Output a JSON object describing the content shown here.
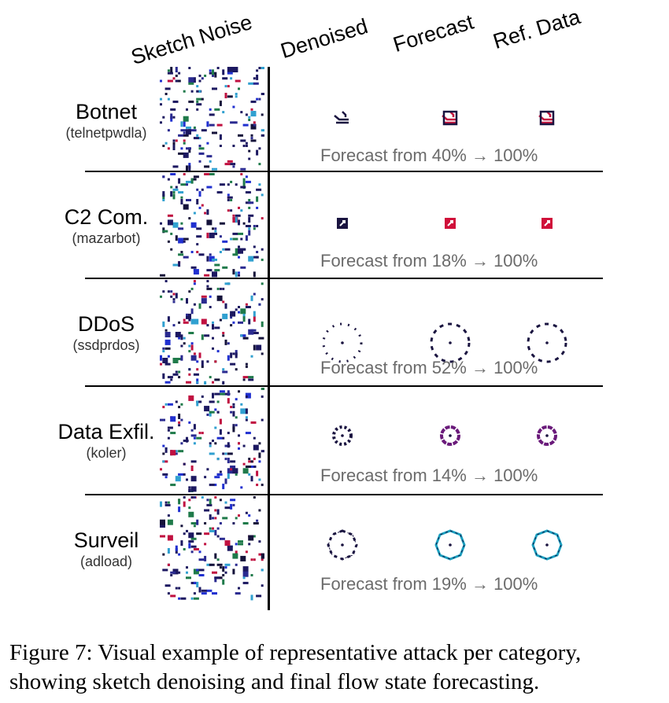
{
  "figure": {
    "column_headers": [
      "Sketch Noise",
      "Denoised",
      "Forecast",
      "Ref. Data"
    ],
    "rows": [
      {
        "category": "Botnet",
        "sample": "(telnetpwdla)",
        "forecast_text": "Forecast from 40% → 100%",
        "forecast_from_pct": 40,
        "forecast_to_pct": 100,
        "shape": "glyph-botnet",
        "color": "#c4163f"
      },
      {
        "category": "C2 Com.",
        "sample": "(mazarbot)",
        "forecast_text": "Forecast from 18% → 100%",
        "forecast_from_pct": 18,
        "forecast_to_pct": 100,
        "shape": "square",
        "color": "#d0103a"
      },
      {
        "category": "DDoS",
        "sample": "(ssdprdos)",
        "forecast_text": "Forecast from 52% → 100%",
        "forecast_from_pct": 52,
        "forecast_to_pct": 100,
        "shape": "dotted-circle-large",
        "color": "#1a1a8c"
      },
      {
        "category": "Data Exfil.",
        "sample": "(koler)",
        "forecast_text": "Forecast from 14% → 100%",
        "forecast_from_pct": 14,
        "forecast_to_pct": 100,
        "shape": "gear-circle-small",
        "color": "#6a1a7a"
      },
      {
        "category": "Surveil",
        "sample": "(adload)",
        "forecast_text": "Forecast from 19% → 100%",
        "forecast_from_pct": 19,
        "forecast_to_pct": 100,
        "shape": "octagon",
        "color": "#1aa0c0"
      }
    ]
  },
  "caption": "Figure 7: Visual example of representative attack per category, showing sketch denoising and final flow state forecasting."
}
